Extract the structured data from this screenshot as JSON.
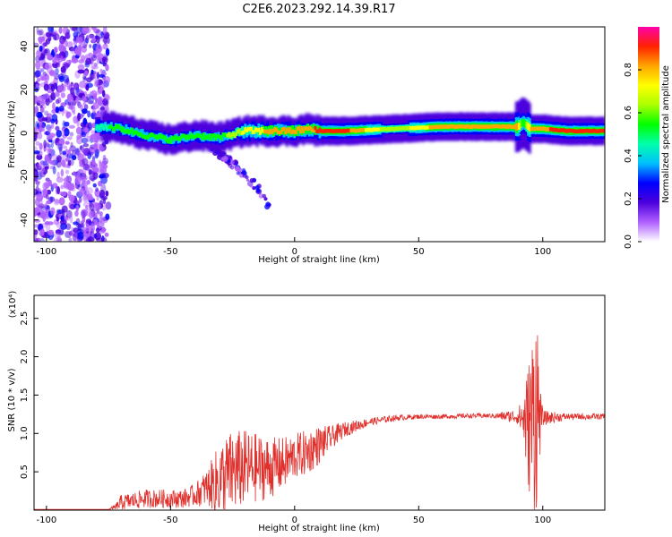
{
  "title": "C2E6.2023.292.14.39.R17",
  "chart_data": [
    {
      "type": "heatmap",
      "xlabel": "Height of straight line (km)",
      "ylabel": "Frequency (Hz)",
      "xlim": [
        -105,
        125
      ],
      "ylim": [
        -50,
        49
      ],
      "x_ticks": [
        -100,
        -50,
        0,
        50,
        100
      ],
      "y_ticks": [
        -40,
        -20,
        0,
        20,
        40
      ],
      "colorbar": {
        "label": "Normalized spectral amplitude",
        "range": [
          0,
          1
        ],
        "ticks": [
          0.0,
          0.2,
          0.4,
          0.6,
          0.8
        ],
        "colors": [
          "#ffffff",
          "#b060ff",
          "#4b00dd",
          "#0000ff",
          "#00bfff",
          "#00ffaa",
          "#00ff00",
          "#aaff00",
          "#ffff00",
          "#ffa500",
          "#ff2200",
          "#ff00aa"
        ]
      },
      "ridge": {
        "x": [
          -80,
          -75,
          -70,
          -60,
          -50,
          -40,
          -30,
          -20,
          -10,
          0,
          5,
          10,
          20,
          40,
          60,
          80,
          90,
          92,
          95,
          100,
          110,
          125
        ],
        "freq": [
          3,
          3,
          2,
          -1,
          -3,
          -1,
          -2,
          1,
          1,
          1,
          2,
          1,
          1,
          2,
          3,
          3,
          3,
          5,
          2,
          2,
          1,
          1
        ],
        "peak_amplitude": [
          0.45,
          0.5,
          0.55,
          0.5,
          0.5,
          0.55,
          0.55,
          0.7,
          0.8,
          0.85,
          0.8,
          0.9,
          0.9,
          0.6,
          0.85,
          0.85,
          0.8,
          0.5,
          0.8,
          0.85,
          0.9,
          0.9
        ]
      },
      "noise_region": {
        "x_start": -105,
        "x_end": -75,
        "amplitude": 0.2
      },
      "tail": {
        "x": [
          -35,
          -25,
          -15,
          -10
        ],
        "freq": [
          -5,
          -14,
          -25,
          -35
        ]
      }
    },
    {
      "type": "line",
      "xlabel": "Height of straight line (km)",
      "ylabel": "SNR (10 * v/v)",
      "y_scale_label": "(x10⁴)",
      "xlim": [
        -105,
        125
      ],
      "ylim": [
        0,
        2.8
      ],
      "x_ticks": [
        -100,
        -50,
        0,
        50,
        100
      ],
      "y_ticks": [
        0.5,
        1.0,
        1.5,
        2.0,
        2.5
      ],
      "color": "#e0302c",
      "envelope": {
        "x": [
          -105,
          -75,
          -72,
          -70,
          -60,
          -50,
          -45,
          -40,
          -35,
          -30,
          -25,
          -20,
          -15,
          -10,
          -5,
          0,
          5,
          10,
          15,
          20,
          30,
          40,
          50,
          60,
          70,
          80,
          90,
          92,
          94,
          96,
          97,
          98,
          99,
          100,
          110,
          120,
          125
        ],
        "mid": [
          0.01,
          0.01,
          0.04,
          0.1,
          0.15,
          0.15,
          0.15,
          0.2,
          0.3,
          0.4,
          0.5,
          0.55,
          0.55,
          0.55,
          0.6,
          0.7,
          0.75,
          0.85,
          0.95,
          1.05,
          1.15,
          1.2,
          1.22,
          1.22,
          1.23,
          1.23,
          1.22,
          1.2,
          1.1,
          1.2,
          1.4,
          1.3,
          1.2,
          1.2,
          1.22,
          1.22,
          1.22
        ],
        "amp": [
          0,
          0,
          0.05,
          0.1,
          0.12,
          0.12,
          0.12,
          0.15,
          0.25,
          0.5,
          0.55,
          0.5,
          0.45,
          0.4,
          0.35,
          0.3,
          0.3,
          0.25,
          0.15,
          0.1,
          0.05,
          0.04,
          0.03,
          0.03,
          0.03,
          0.03,
          0.1,
          0.3,
          0.8,
          1.2,
          1.45,
          1.3,
          0.4,
          0.1,
          0.04,
          0.04,
          0.04
        ]
      }
    }
  ]
}
